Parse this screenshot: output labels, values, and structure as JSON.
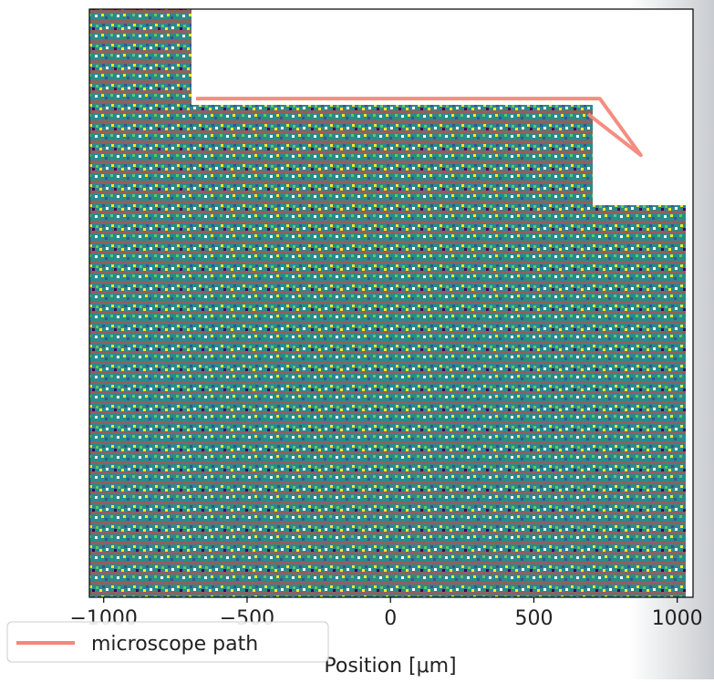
{
  "chart_data": {
    "type": "line",
    "xlabel": "Position [μm]",
    "xlim": [
      -1050,
      1055
    ],
    "ylim": [
      -1000,
      1050
    ],
    "xticks": [
      {
        "value": -1000,
        "label": "−1000"
      },
      {
        "value": -500,
        "label": "−500"
      },
      0,
      500,
      1000
    ],
    "series": [
      {
        "name": "microscope path",
        "color": "#f4877a",
        "x": [
          -678,
          -313,
          37,
          387,
          730,
          873,
          689
        ],
        "values": [
          738,
          738,
          738,
          738,
          738,
          541,
          684
        ]
      }
    ],
    "legend": "lower left"
  }
}
